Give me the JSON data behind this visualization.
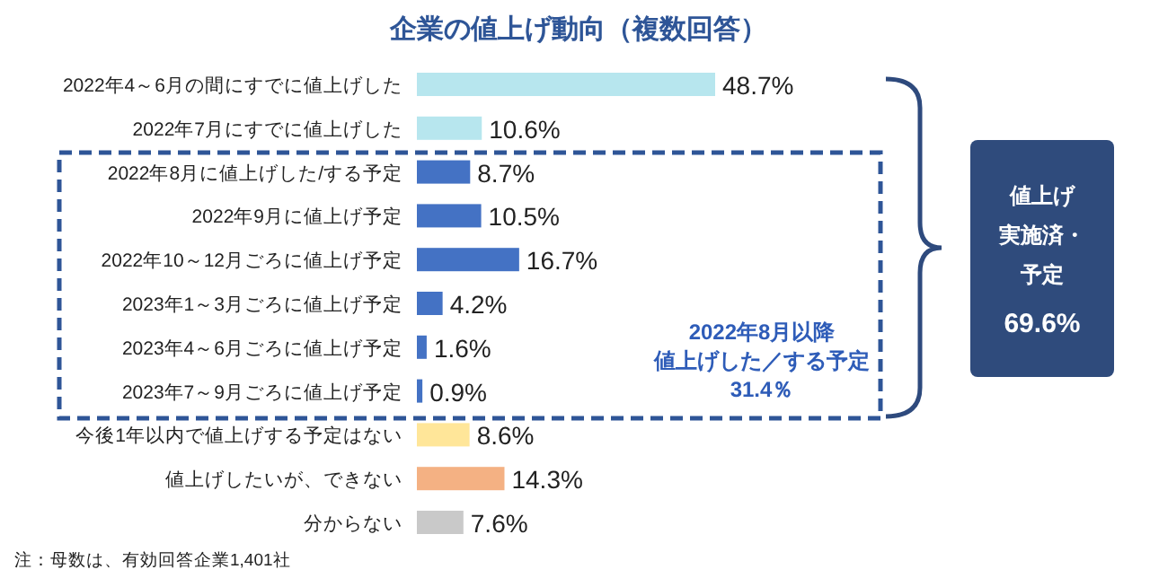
{
  "chart_data": {
    "type": "bar",
    "orientation": "horizontal",
    "title": "企業の値上げ動向（複数回答）",
    "categories": [
      "2022年4～6月の間にすでに値上げした",
      "2022年7月にすでに値上げした",
      "2022年8月に値上げした/する予定",
      "2022年9月に値上げ予定",
      "2022年10～12月ごろに値上げ予定",
      "2023年1～3月ごろに値上げ予定",
      "2023年4～6月ごろに値上げ予定",
      "2023年7～9月ごろに値上げ予定",
      "今後1年以内で値上げする予定はない",
      "値上げしたいが、できない",
      "分からない"
    ],
    "values": [
      48.7,
      10.6,
      8.7,
      10.5,
      16.7,
      4.2,
      1.6,
      0.9,
      8.6,
      14.3,
      7.6
    ],
    "colors": [
      "#b7e6ee",
      "#b7e6ee",
      "#4472c4",
      "#4472c4",
      "#4472c4",
      "#4472c4",
      "#4472c4",
      "#4472c4",
      "#ffe699",
      "#f4b183",
      "#c9c9c9"
    ],
    "value_labels": [
      "48.7%",
      "10.6%",
      "8.7%",
      "10.5%",
      "16.7%",
      "4.2%",
      "1.6%",
      "0.9%",
      "8.6%",
      "14.3%",
      "7.6%"
    ],
    "annotations": [
      "2022年8月以降",
      "値上げした／する予定",
      "31.4％",
      "値上げ",
      "実施済・",
      "予定",
      "69.6%",
      "注：母数は、有効回答企業1,401社"
    ]
  }
}
